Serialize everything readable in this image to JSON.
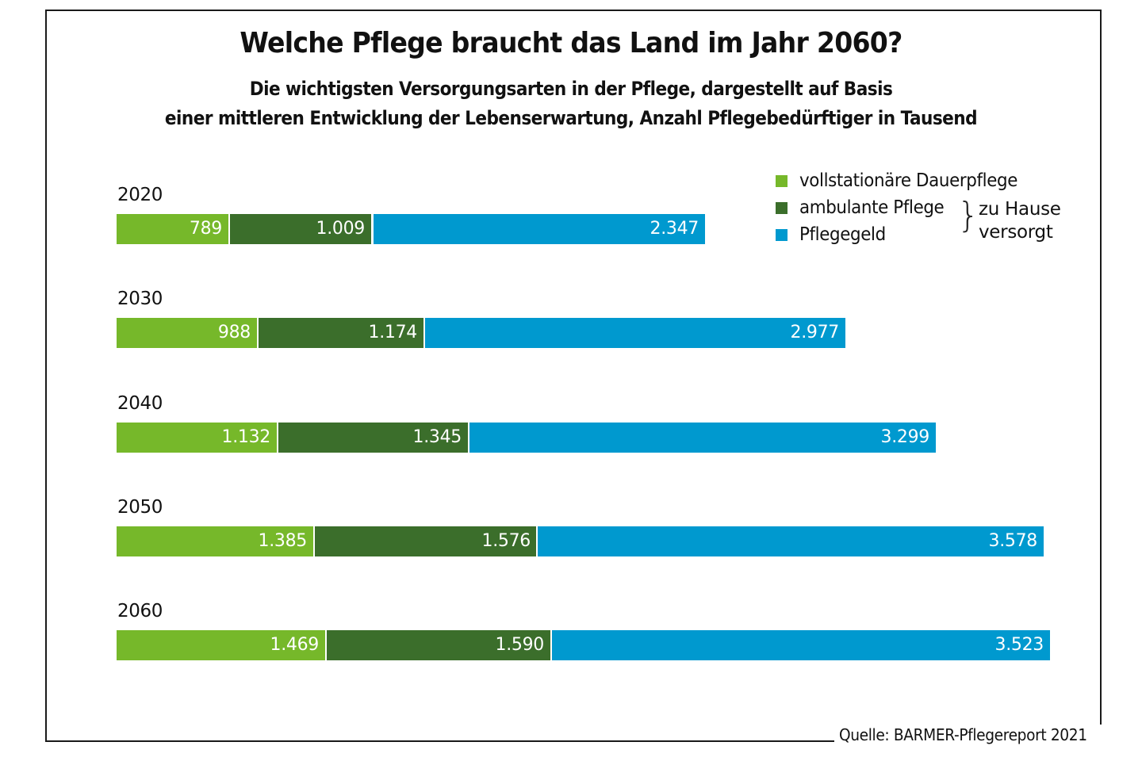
{
  "chart_data": {
    "type": "bar",
    "orientation": "horizontal",
    "stacked": true,
    "title": "Welche Pflege braucht das Land im Jahr 2060?",
    "subtitle_lines": [
      "Die wichtigsten Versorgungsarten in der Pflege, dargestellt auf Basis",
      "einer mittleren Entwicklung der Lebenserwartung, Anzahl Pflegebedürftiger in Tausend"
    ],
    "categories": [
      "2020",
      "2030",
      "2040",
      "2050",
      "2060"
    ],
    "series": [
      {
        "name": "vollstationäre Dauerpflege",
        "color": "#76b82a",
        "values": [
          789,
          988,
          1132,
          1385,
          1469
        ],
        "labels": [
          "789",
          "988",
          "1.132",
          "1.385",
          "1.469"
        ]
      },
      {
        "name": "ambulante Pflege",
        "color": "#3b6e2b",
        "values": [
          1009,
          1174,
          1345,
          1576,
          1590
        ],
        "labels": [
          "1.009",
          "1.174",
          "1.345",
          "1.576",
          "1.590"
        ]
      },
      {
        "name": "Pflegegeld",
        "color": "#0099cf",
        "values": [
          2347,
          2977,
          3299,
          3578,
          3523
        ],
        "labels": [
          "2.347",
          "2.977",
          "3.299",
          "3.578",
          "3.523"
        ]
      }
    ],
    "xlabel": "",
    "ylabel": "",
    "unit": "Tausend",
    "xlim": [
      0,
      6582
    ],
    "grid": false,
    "legend_position": "top-right",
    "legend_group_note": "zu Hause versorgt",
    "legend_group_note_lines": [
      "zu Hause",
      "versorgt"
    ],
    "source": "Quelle: BARMER-Pflegereport 2021"
  }
}
